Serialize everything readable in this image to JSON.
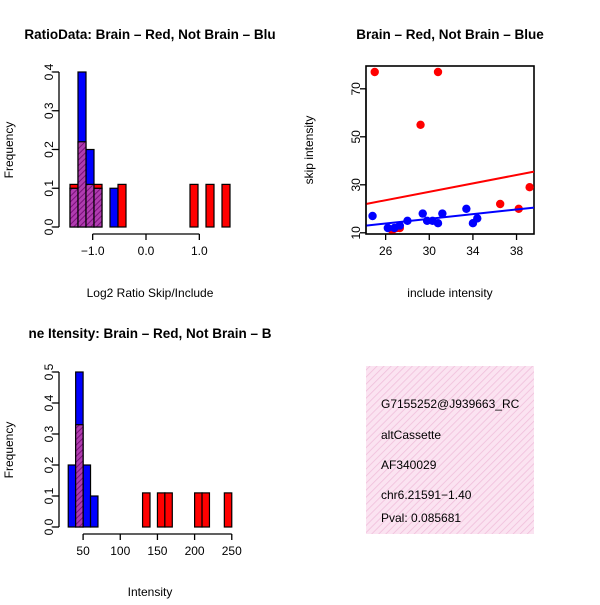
{
  "colors": {
    "red": "#ff0000",
    "blue": "#0000ff",
    "overlap": "#a020a0",
    "info_bg": "#f8d3ea",
    "pval": "#b00000"
  },
  "chart_data": [
    {
      "type": "bar",
      "subtype": "histogram",
      "title": "RatioData: Brain – Red, Not Brain – Blu",
      "xlabel": "Log2 Ratio Skip/Include",
      "ylabel": "Frequency",
      "xlim": [
        -1.5,
        1.65
      ],
      "ylim": [
        0,
        0.4
      ],
      "xticks": [
        -1.0,
        0.0,
        1.0
      ],
      "xtick_labels": [
        "−1.0",
        "0.0",
        "1.0"
      ],
      "yticks": [
        0.0,
        0.1,
        0.2,
        0.3,
        0.4
      ],
      "ytick_labels": [
        "0.0",
        "0.1",
        "0.2",
        "0.3",
        "0.4"
      ],
      "bin_width": 0.15,
      "series": [
        {
          "name": "Not Brain",
          "color": "blue",
          "bins": [
            [
              -1.35,
              0.1
            ],
            [
              -1.2,
              0.4
            ],
            [
              -1.05,
              0.2
            ],
            [
              -0.9,
              0.1
            ],
            [
              -0.6,
              0.1
            ]
          ]
        },
        {
          "name": "Brain",
          "color": "red",
          "bins": [
            [
              -1.35,
              0.11
            ],
            [
              -1.2,
              0.22
            ],
            [
              -1.05,
              0.11
            ],
            [
              -0.9,
              0.11
            ],
            [
              -0.45,
              0.11
            ],
            [
              0.9,
              0.11
            ],
            [
              1.2,
              0.11
            ],
            [
              1.5,
              0.11
            ]
          ]
        }
      ]
    },
    {
      "type": "scatter",
      "title": "Brain – Red, Not Brain – Blue",
      "xlabel": "include intensity",
      "ylabel": "skip intensity",
      "xlim": [
        24.2,
        39.6
      ],
      "ylim": [
        9.5,
        79.5
      ],
      "xticks": [
        26,
        30,
        34,
        38
      ],
      "xtick_labels": [
        "26",
        "30",
        "34",
        "38"
      ],
      "yticks": [
        10,
        30,
        50,
        70
      ],
      "ytick_labels": [
        "10",
        "30",
        "50",
        "70"
      ],
      "series": [
        {
          "name": "Brain",
          "color": "red",
          "x": [
            25.0,
            29.2,
            30.8,
            36.5,
            38.2,
            39.2,
            26.6,
            27.0,
            27.3
          ],
          "y": [
            77,
            55,
            77,
            22,
            20,
            29,
            11,
            12,
            12
          ],
          "fit": {
            "x": [
              24.2,
              39.6
            ],
            "y": [
              22.0,
              35.5
            ]
          }
        },
        {
          "name": "Not Brain",
          "color": "blue",
          "x": [
            24.8,
            26.2,
            26.8,
            27.3,
            28.0,
            29.4,
            29.8,
            30.3,
            30.8,
            31.2,
            33.4,
            34.0,
            34.4
          ],
          "y": [
            17,
            12,
            12,
            13,
            15,
            18,
            15,
            15,
            14,
            18,
            20,
            14,
            16
          ],
          "fit": {
            "x": [
              24.2,
              39.6
            ],
            "y": [
              13.0,
              20.5
            ]
          }
        }
      ]
    },
    {
      "type": "bar",
      "subtype": "histogram",
      "title": "ne Itensity: Brain – Red, Not Brain – B",
      "xlabel": "Intensity",
      "ylabel": "Frequency",
      "xlim": [
        27,
        253
      ],
      "ylim": [
        0,
        0.5
      ],
      "xticks": [
        50,
        100,
        150,
        200,
        250
      ],
      "xtick_labels": [
        "50",
        "100",
        "150",
        "200",
        "250"
      ],
      "yticks": [
        0.0,
        0.1,
        0.2,
        0.3,
        0.4,
        0.5
      ],
      "ytick_labels": [
        "0.0",
        "0.1",
        "0.2",
        "0.3",
        "0.4",
        "0.5"
      ],
      "bin_width": 10,
      "series": [
        {
          "name": "Not Brain",
          "color": "blue",
          "bins": [
            [
              35,
              0.2
            ],
            [
              45,
              0.5
            ],
            [
              55,
              0.2
            ],
            [
              65,
              0.1
            ]
          ]
        },
        {
          "name": "Brain",
          "color": "red",
          "bins": [
            [
              45,
              0.33
            ],
            [
              135,
              0.11
            ],
            [
              155,
              0.11
            ],
            [
              165,
              0.11
            ],
            [
              205,
              0.11
            ],
            [
              215,
              0.11
            ],
            [
              245,
              0.11
            ]
          ]
        }
      ]
    }
  ],
  "info_panel": {
    "id": "G7155252@J939663_RC",
    "event_type": "altCassette",
    "accession": "AF340029",
    "location": "chr6.21591−1.40",
    "pval": "Pval: 0.085681"
  }
}
